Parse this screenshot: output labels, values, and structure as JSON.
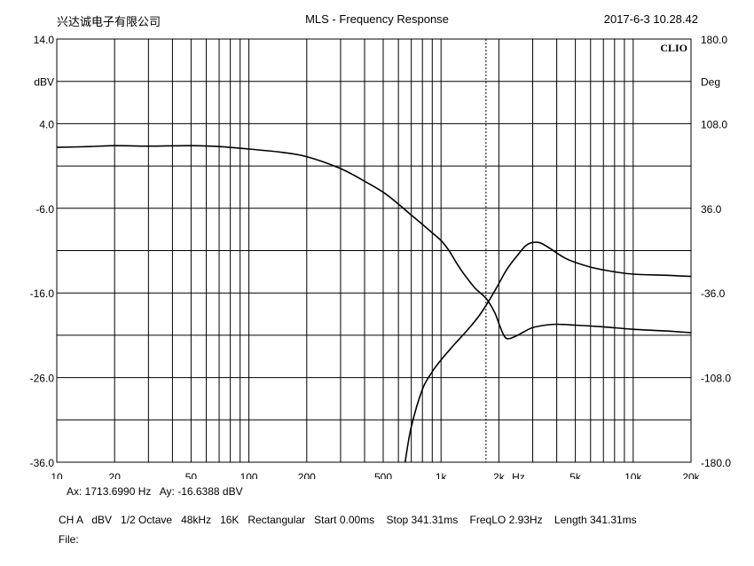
{
  "header": {
    "company": "兴达诚电子有限公司",
    "title": "MLS - Frequency Response",
    "datetime": "2017-6-3 10.28.42"
  },
  "chart_data": {
    "type": "line",
    "title": "MLS - Frequency Response",
    "watermark": "CLIO",
    "x_scale": "log",
    "xlim": [
      10,
      20000
    ],
    "x_ticks": [
      {
        "v": 10,
        "label": "10"
      },
      {
        "v": 20,
        "label": "20"
      },
      {
        "v": 50,
        "label": "50"
      },
      {
        "v": 100,
        "label": "100"
      },
      {
        "v": 200,
        "label": "200"
      },
      {
        "v": 500,
        "label": "500"
      },
      {
        "v": 1000,
        "label": "1k"
      },
      {
        "v": 2000,
        "label": "2k"
      },
      {
        "v": 5000,
        "label": "5k"
      },
      {
        "v": 10000,
        "label": "10k"
      },
      {
        "v": 20000,
        "label": "20k"
      }
    ],
    "x_unit_label": "Hz",
    "y_left": {
      "unit": "dBV",
      "lim": [
        -36,
        14
      ],
      "ticks": [
        {
          "v": 14,
          "label": "14.0"
        },
        {
          "v": 4,
          "label": "4.0"
        },
        {
          "v": -6,
          "label": "-6.0"
        },
        {
          "v": -16,
          "label": "-16.0"
        },
        {
          "v": -26,
          "label": "-26.0"
        },
        {
          "v": -36,
          "label": "-36.0"
        }
      ]
    },
    "y_right": {
      "unit": "Deg",
      "lim": [
        -180,
        180
      ],
      "ticks": [
        {
          "v": 180,
          "label": "180.0"
        },
        {
          "v": 108,
          "label": "108.0"
        },
        {
          "v": 36,
          "label": "36.0"
        },
        {
          "v": -36,
          "label": "-36.0"
        },
        {
          "v": -108,
          "label": "-108.0"
        },
        {
          "v": -180,
          "label": "-180.0"
        }
      ]
    },
    "grid": true,
    "cursor_x": 1713.699,
    "series": [
      {
        "axis": "left",
        "points": [
          [
            10,
            1.2
          ],
          [
            15,
            1.3
          ],
          [
            20,
            1.4
          ],
          [
            30,
            1.35
          ],
          [
            50,
            1.4
          ],
          [
            70,
            1.3
          ],
          [
            100,
            1.0
          ],
          [
            150,
            0.6
          ],
          [
            200,
            0.1
          ],
          [
            300,
            -1.3
          ],
          [
            400,
            -2.8
          ],
          [
            500,
            -4.1
          ],
          [
            600,
            -5.5
          ],
          [
            700,
            -6.8
          ],
          [
            800,
            -7.9
          ],
          [
            900,
            -8.9
          ],
          [
            1000,
            -9.8
          ],
          [
            1100,
            -11.0
          ],
          [
            1200,
            -12.4
          ],
          [
            1300,
            -13.6
          ],
          [
            1500,
            -15.4
          ],
          [
            1713.699,
            -16.6388
          ],
          [
            1900,
            -18.3
          ],
          [
            2000,
            -19.6
          ],
          [
            2100,
            -20.8
          ],
          [
            2200,
            -21.4
          ],
          [
            2400,
            -21.2
          ],
          [
            2700,
            -20.6
          ],
          [
            3000,
            -20.1
          ],
          [
            3500,
            -19.8
          ],
          [
            4000,
            -19.7
          ],
          [
            5000,
            -19.8
          ],
          [
            7000,
            -20.0
          ],
          [
            10000,
            -20.3
          ],
          [
            15000,
            -20.5
          ],
          [
            20000,
            -20.7
          ]
        ]
      },
      {
        "axis": "right",
        "points": [
          [
            650,
            -180
          ],
          [
            700,
            -150
          ],
          [
            800,
            -118
          ],
          [
            900,
            -103
          ],
          [
            1000,
            -93
          ],
          [
            1100,
            -85
          ],
          [
            1200,
            -78
          ],
          [
            1400,
            -66
          ],
          [
            1600,
            -54
          ],
          [
            1800,
            -41
          ],
          [
            2000,
            -28
          ],
          [
            2200,
            -16
          ],
          [
            2500,
            -4
          ],
          [
            2800,
            5
          ],
          [
            3200,
            7
          ],
          [
            3600,
            3
          ],
          [
            4500,
            -7
          ],
          [
            6000,
            -14
          ],
          [
            8000,
            -18
          ],
          [
            10000,
            -20
          ],
          [
            15000,
            -21
          ],
          [
            20000,
            -22
          ]
        ]
      }
    ]
  },
  "footer": {
    "cursor_readout": "Ax: 1713.6990 Hz   Ay: -16.6388 dBV",
    "settings": "CH A   dBV   1/2 Octave   48kHz   16K   Rectangular   Start 0.00ms    Stop 341.31ms    FreqLO 2.93Hz    Length 341.31ms",
    "file": "File:"
  }
}
